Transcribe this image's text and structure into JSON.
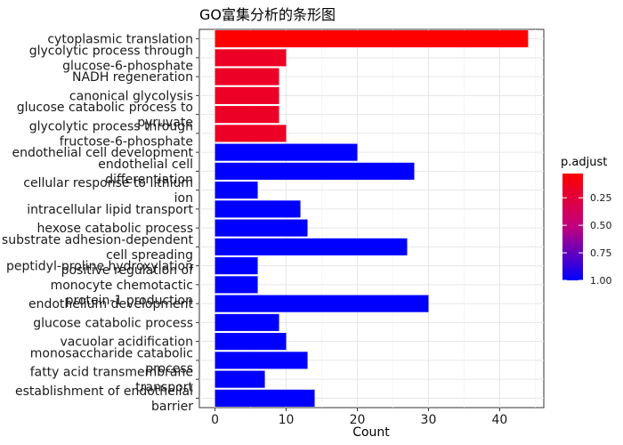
{
  "chart_data": {
    "type": "bar",
    "orientation": "horizontal",
    "title": "GO富集分析的条形图",
    "xlabel": "Count",
    "ylabel": "",
    "xlim": [
      -2.2,
      46.2
    ],
    "xticks": [
      0,
      10,
      20,
      30,
      40
    ],
    "grid": true,
    "legend": {
      "title": "p.adjust",
      "placement": "right",
      "ticks": [
        "0.25",
        "0.50",
        "0.75",
        "1.00"
      ],
      "tick_values": [
        0.25,
        0.5,
        0.75,
        1.0
      ],
      "range": [
        0.03,
        1.0
      ],
      "color_low_value": "#ff0000",
      "color_high_value": "#0000ff"
    },
    "categories": [
      "cytoplasmic translation",
      "glycolytic process through glucose-6-phosphate",
      "NADH regeneration",
      "canonical glycolysis",
      "glucose catabolic process to pyruvate",
      "glycolytic process through fructose-6-phosphate",
      "endothelial cell development",
      "endothelial cell differentiation",
      "cellular response to lithium ion",
      "intracellular lipid transport",
      "hexose catabolic process",
      "substrate adhesion-dependent cell spreading",
      "peptidyl-proline hydroxylation",
      "positive regulation of monocyte chemotactic protein-1 production",
      "endothelium development",
      "glucose catabolic process",
      "vacuolar acidification",
      "monosaccharide catabolic process",
      "fatty acid transmembrane transport",
      "establishment of endothelial barrier"
    ],
    "category_lines": [
      [
        "cytoplasmic translation"
      ],
      [
        "glycolytic process through",
        "glucose-6-phosphate"
      ],
      [
        "NADH regeneration"
      ],
      [
        "canonical glycolysis"
      ],
      [
        "glucose catabolic process to",
        "pyruvate"
      ],
      [
        "glycolytic process through",
        "fructose-6-phosphate"
      ],
      [
        "endothelial cell development"
      ],
      [
        "endothelial cell",
        "differentiation"
      ],
      [
        "cellular response to lithium",
        "ion"
      ],
      [
        "intracellular lipid transport"
      ],
      [
        "hexose catabolic process"
      ],
      [
        "substrate adhesion-dependent",
        "cell spreading"
      ],
      [
        "peptidyl-proline hydroxylation"
      ],
      [
        "positive regulation of",
        "monocyte chemotactic",
        "protein-1 production"
      ],
      [
        "endothelium development"
      ],
      [
        "glucose catabolic process"
      ],
      [
        "vacuolar acidification"
      ],
      [
        "monosaccharide catabolic",
        "process"
      ],
      [
        "fatty acid transmembrane",
        "transport"
      ],
      [
        "establishment of endothelial",
        "barrier"
      ]
    ],
    "values": [
      44,
      10,
      9,
      9,
      9,
      10,
      20,
      28,
      6,
      12,
      13,
      27,
      6,
      6,
      30,
      9,
      10,
      13,
      7,
      14
    ],
    "p_adjust": [
      0.03,
      0.17,
      0.17,
      0.17,
      0.17,
      0.17,
      1.0,
      1.0,
      1.0,
      1.0,
      1.0,
      1.0,
      1.0,
      1.0,
      1.0,
      1.0,
      1.0,
      1.0,
      1.0,
      1.0
    ]
  }
}
